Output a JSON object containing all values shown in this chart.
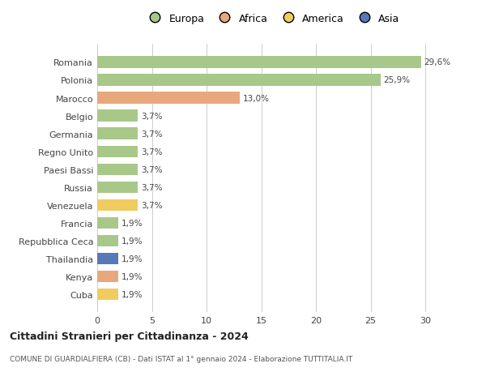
{
  "countries": [
    "Romania",
    "Polonia",
    "Marocco",
    "Belgio",
    "Germania",
    "Regno Unito",
    "Paesi Bassi",
    "Russia",
    "Venezuela",
    "Francia",
    "Repubblica Ceca",
    "Thailandia",
    "Kenya",
    "Cuba"
  ],
  "values": [
    29.6,
    25.9,
    13.0,
    3.7,
    3.7,
    3.7,
    3.7,
    3.7,
    3.7,
    1.9,
    1.9,
    1.9,
    1.9,
    1.9
  ],
  "labels": [
    "29,6%",
    "25,9%",
    "13,0%",
    "3,7%",
    "3,7%",
    "3,7%",
    "3,7%",
    "3,7%",
    "3,7%",
    "1,9%",
    "1,9%",
    "1,9%",
    "1,9%",
    "1,9%"
  ],
  "continents": [
    "Europa",
    "Europa",
    "Africa",
    "Europa",
    "Europa",
    "Europa",
    "Europa",
    "Europa",
    "America",
    "Europa",
    "Europa",
    "Asia",
    "Africa",
    "America"
  ],
  "continent_colors": {
    "Europa": "#a8c88a",
    "Africa": "#e8a87c",
    "America": "#f0cc60",
    "Asia": "#5878b8"
  },
  "legend_labels": [
    "Europa",
    "Africa",
    "America",
    "Asia"
  ],
  "legend_colors": [
    "#a8c88a",
    "#e8a87c",
    "#f0cc60",
    "#5878b8"
  ],
  "xlim": [
    0,
    32
  ],
  "xticks": [
    0,
    5,
    10,
    15,
    20,
    25,
    30
  ],
  "title": "Cittadini Stranieri per Cittadinanza - 2024",
  "subtitle": "COMUNE DI GUARDIALFIERA (CB) - Dati ISTAT al 1° gennaio 2024 - Elaborazione TUTTITALIA.IT",
  "background_color": "#ffffff",
  "grid_color": "#cccccc",
  "bar_height": 0.65
}
